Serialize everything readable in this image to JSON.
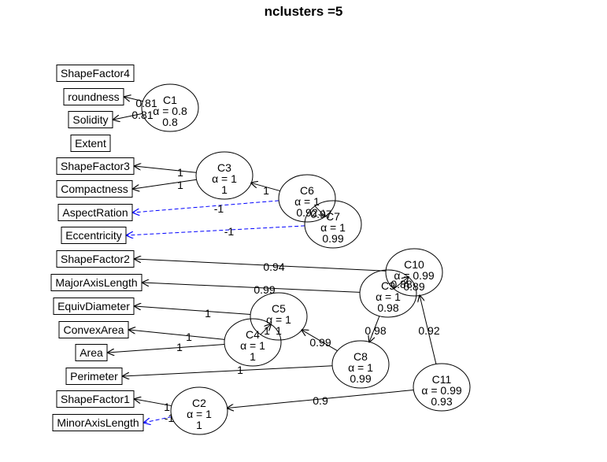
{
  "title": "nclusters =5",
  "colors": {
    "positive_edge": "#000000",
    "negative_edge": "#0000ff"
  },
  "variables": [
    {
      "id": "ShapeFactor4",
      "label": "ShapeFactor4"
    },
    {
      "id": "roundness",
      "label": "roundness"
    },
    {
      "id": "Solidity",
      "label": "Solidity"
    },
    {
      "id": "Extent",
      "label": "Extent"
    },
    {
      "id": "ShapeFactor3",
      "label": "ShapeFactor3"
    },
    {
      "id": "Compactness",
      "label": "Compactness"
    },
    {
      "id": "AspectRation",
      "label": "AspectRation"
    },
    {
      "id": "Eccentricity",
      "label": "Eccentricity"
    },
    {
      "id": "ShapeFactor2",
      "label": "ShapeFactor2"
    },
    {
      "id": "MajorAxisLength",
      "label": "MajorAxisLength"
    },
    {
      "id": "EquivDiameter",
      "label": "EquivDiameter"
    },
    {
      "id": "ConvexArea",
      "label": "ConvexArea"
    },
    {
      "id": "Area",
      "label": "Area"
    },
    {
      "id": "Perimeter",
      "label": "Perimeter"
    },
    {
      "id": "ShapeFactor1",
      "label": "ShapeFactor1"
    },
    {
      "id": "MinorAxisLength",
      "label": "MinorAxisLength"
    }
  ],
  "clusters": [
    {
      "id": "C1",
      "name": "C1",
      "alpha": "α = 0.8",
      "value": "0.8"
    },
    {
      "id": "C3",
      "name": "C3",
      "alpha": "α = 1",
      "value": "1"
    },
    {
      "id": "C6",
      "name": "C6",
      "alpha": "α = 1",
      "value": "0.92"
    },
    {
      "id": "C7",
      "name": "C7",
      "alpha": "α = 1",
      "value": "0.99"
    },
    {
      "id": "C10",
      "name": "C10",
      "alpha": "α = 0.99",
      "value": "0.89"
    },
    {
      "id": "C9",
      "name": "C9",
      "alpha": "α = 1",
      "value": "0.98"
    },
    {
      "id": "C5",
      "name": "C5",
      "alpha": "α = 1",
      "value": "1"
    },
    {
      "id": "C4",
      "name": "C4",
      "alpha": "α = 1",
      "value": "1"
    },
    {
      "id": "C8",
      "name": "C8",
      "alpha": "α = 1",
      "value": "0.99"
    },
    {
      "id": "C11",
      "name": "C11",
      "alpha": "α = 0.99",
      "value": "0.93"
    },
    {
      "id": "C2",
      "name": "C2",
      "alpha": "α = 1",
      "value": "1"
    }
  ],
  "edges": [
    {
      "from": "C1",
      "to": "roundness",
      "label": "0.81",
      "sign": "positive"
    },
    {
      "from": "C1",
      "to": "Solidity",
      "label": "0.81",
      "sign": "positive"
    },
    {
      "from": "C3",
      "to": "ShapeFactor3",
      "label": "1",
      "sign": "positive"
    },
    {
      "from": "C3",
      "to": "Compactness",
      "label": "1",
      "sign": "positive"
    },
    {
      "from": "C6",
      "to": "C3",
      "label": "1",
      "sign": "positive"
    },
    {
      "from": "C6",
      "to": "AspectRation",
      "label": "-1",
      "sign": "negative"
    },
    {
      "from": "C7",
      "to": "Eccentricity",
      "label": "-1",
      "sign": "negative"
    },
    {
      "from": "C7",
      "to": "C6",
      "label": "0.97",
      "sign": "positive"
    },
    {
      "from": "C10",
      "to": "ShapeFactor2",
      "label": "0.94",
      "sign": "positive"
    },
    {
      "from": "C10",
      "to": "C9",
      "label": "0.88",
      "sign": "positive"
    },
    {
      "from": "C9",
      "to": "MajorAxisLength",
      "label": "0.99",
      "sign": "positive"
    },
    {
      "from": "C9",
      "to": "C8",
      "label": "0.98",
      "sign": "positive"
    },
    {
      "from": "C5",
      "to": "EquivDiameter",
      "label": "1",
      "sign": "positive"
    },
    {
      "from": "C5",
      "to": "C4",
      "label": "1",
      "sign": "positive"
    },
    {
      "from": "C4",
      "to": "ConvexArea",
      "label": "1",
      "sign": "positive"
    },
    {
      "from": "C4",
      "to": "Area",
      "label": "1",
      "sign": "positive"
    },
    {
      "from": "C8",
      "to": "C5",
      "label": "0.99",
      "sign": "positive"
    },
    {
      "from": "C8",
      "to": "Perimeter",
      "label": "1",
      "sign": "positive"
    },
    {
      "from": "C11",
      "to": "C10",
      "label": "0.92",
      "sign": "positive"
    },
    {
      "from": "C11",
      "to": "C2",
      "label": "0.9",
      "sign": "positive"
    },
    {
      "from": "C2",
      "to": "ShapeFactor1",
      "label": "1",
      "sign": "positive"
    },
    {
      "from": "C2",
      "to": "MinorAxisLength",
      "label": "-1",
      "sign": "negative"
    }
  ]
}
